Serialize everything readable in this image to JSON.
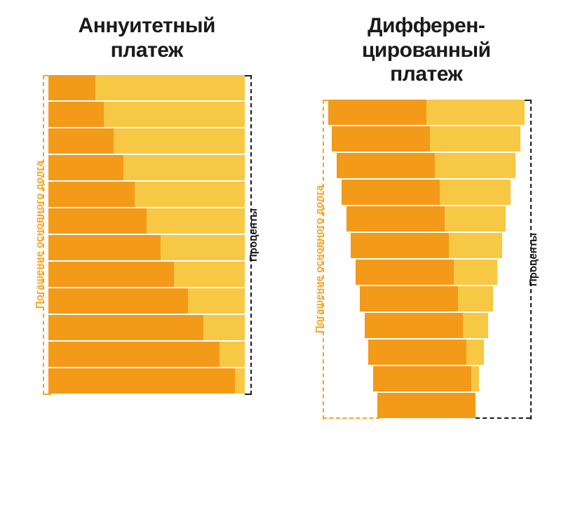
{
  "background_color": "#ffffff",
  "title_color": "#1a1a1a",
  "title_fontsize": 30,
  "left_label_text": "Погашение основного долга",
  "right_label_text": "Проценты",
  "left_label_color": "#f5a623",
  "right_label_color": "#1a1a1a",
  "side_label_fontsize": 15,
  "principal_color": "#f39a19",
  "interest_color": "#f7c843",
  "row_border_color": "#ffffff",
  "row_border_width": 2,
  "bar_row_height": 38,
  "chart_area_width": 280,
  "bracket_dash": "5,5",
  "bracket_width": 2.5,
  "charts": [
    {
      "title": "Аннуитетный\nплатеж",
      "align": "left",
      "rows": [
        {
          "principal": 24,
          "interest": 76
        },
        {
          "principal": 28,
          "interest": 72
        },
        {
          "principal": 33,
          "interest": 67
        },
        {
          "principal": 38,
          "interest": 62
        },
        {
          "principal": 44,
          "interest": 56
        },
        {
          "principal": 50,
          "interest": 50
        },
        {
          "principal": 57,
          "interest": 43
        },
        {
          "principal": 64,
          "interest": 36
        },
        {
          "principal": 71,
          "interest": 29
        },
        {
          "principal": 79,
          "interest": 21
        },
        {
          "principal": 87,
          "interest": 13
        },
        {
          "principal": 95,
          "interest": 5
        }
      ]
    },
    {
      "title": "Дифферен-\nцированный\nплатеж",
      "align": "center",
      "rows": [
        {
          "principal": 50,
          "interest": 50
        },
        {
          "principal": 50,
          "interest": 46
        },
        {
          "principal": 50,
          "interest": 41
        },
        {
          "principal": 50,
          "interest": 36
        },
        {
          "principal": 50,
          "interest": 31
        },
        {
          "principal": 50,
          "interest": 27
        },
        {
          "principal": 50,
          "interest": 22
        },
        {
          "principal": 50,
          "interest": 18
        },
        {
          "principal": 50,
          "interest": 13
        },
        {
          "principal": 50,
          "interest": 9
        },
        {
          "principal": 50,
          "interest": 4
        },
        {
          "principal": 50,
          "interest": 0
        }
      ]
    }
  ]
}
